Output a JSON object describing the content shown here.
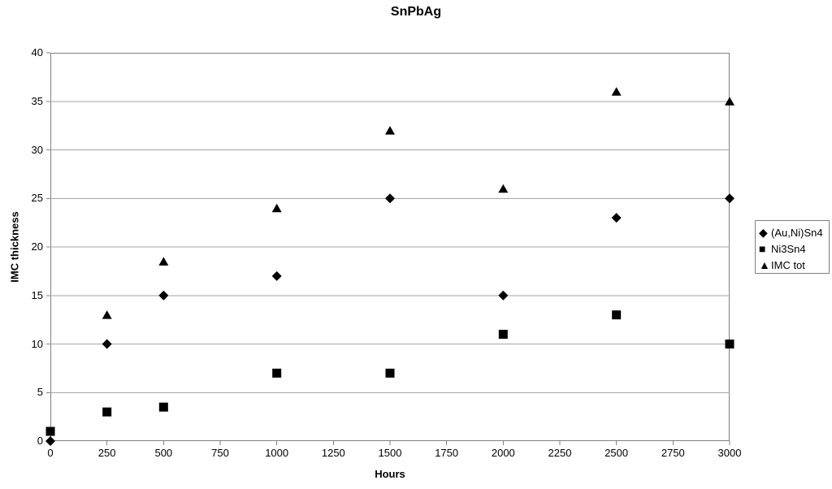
{
  "title": "SnPbAg",
  "axes": {
    "y_label": "IMC thickness",
    "x_label": "Hours",
    "y_ticks": [
      0,
      5,
      10,
      15,
      20,
      25,
      30,
      35,
      40
    ],
    "x_ticks": [
      0,
      250,
      500,
      750,
      1000,
      1250,
      1500,
      1750,
      2000,
      2250,
      2500,
      2750,
      3000
    ]
  },
  "legend": {
    "items": [
      {
        "icon": "diamond-icon",
        "glyph": "◆",
        "label": "(Au,Ni)Sn4"
      },
      {
        "icon": "square-icon",
        "glyph": "■",
        "label": "Ni3Sn4"
      },
      {
        "icon": "triangle-icon",
        "glyph": "▲",
        "label": "IMC tot"
      }
    ]
  },
  "colors": {
    "marker": "#000000",
    "gridline": "#a6a6a6",
    "axis": "#808080",
    "background": "#ffffff",
    "text": "#000000"
  },
  "chart_data": {
    "type": "scatter",
    "title": "SnPbAg",
    "xlabel": "Hours",
    "ylabel": "IMC thickness",
    "xlim": [
      0,
      3000
    ],
    "ylim": [
      0,
      40
    ],
    "x_tick_step": 250,
    "y_tick_step": 5,
    "grid": "horizontal-only",
    "legend_position": "right-outside",
    "series": [
      {
        "name": "(Au,Ni)Sn4",
        "marker": "diamond",
        "x": [
          0,
          250,
          500,
          1000,
          1500,
          2000,
          2500,
          3000
        ],
        "y": [
          0,
          10,
          15,
          17,
          25,
          15,
          23,
          25
        ]
      },
      {
        "name": "Ni3Sn4",
        "marker": "square",
        "x": [
          0,
          250,
          500,
          1000,
          1500,
          2000,
          2500,
          3000
        ],
        "y": [
          1,
          3,
          3.5,
          7,
          7,
          11,
          13,
          10
        ]
      },
      {
        "name": "IMC tot",
        "marker": "triangle",
        "x": [
          250,
          500,
          1000,
          1500,
          2000,
          2500,
          3000
        ],
        "y": [
          13,
          18.5,
          24,
          32,
          26,
          36,
          35
        ]
      }
    ]
  }
}
